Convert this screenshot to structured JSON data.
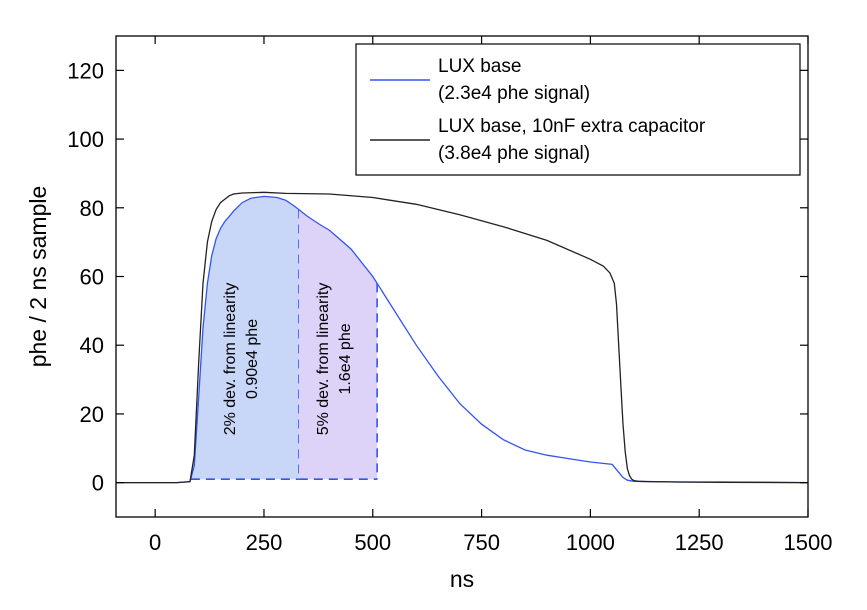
{
  "chart_data": {
    "type": "line",
    "title": "",
    "xlabel": "ns",
    "ylabel": "phe / 2 ns sample",
    "xlim": [
      -90,
      1500
    ],
    "ylim": [
      -10,
      130
    ],
    "xticks": [
      0,
      250,
      500,
      750,
      1000,
      1250,
      1500
    ],
    "yticks": [
      0,
      20,
      40,
      60,
      80,
      100,
      120
    ],
    "grid": false,
    "legend_position": "top-right",
    "legend": [
      {
        "series": "blue",
        "line1": "LUX base",
        "line2": "(2.3e4 phe signal)"
      },
      {
        "series": "black",
        "line1": "LUX base, 10nF extra capacitor",
        "line2": "(3.8e4 phe signal)"
      }
    ],
    "series": [
      {
        "key": "blue",
        "color": "#3355ee",
        "x": [
          -90,
          50,
          80,
          90,
          100,
          110,
          120,
          130,
          140,
          150,
          160,
          170,
          180,
          200,
          220,
          250,
          280,
          300,
          320,
          350,
          380,
          400,
          450,
          500,
          550,
          600,
          650,
          700,
          750,
          800,
          850,
          900,
          950,
          1000,
          1050,
          1065,
          1075,
          1085,
          1100,
          1150,
          1200,
          1300,
          1400,
          1500
        ],
        "y": [
          0,
          0,
          0.3,
          5,
          25,
          45,
          58,
          66,
          71,
          74,
          76,
          77.5,
          79,
          81.5,
          82.8,
          83.3,
          83,
          82.2,
          80.5,
          77.5,
          75,
          73.5,
          68,
          60,
          50,
          40,
          31,
          23,
          17,
          12.5,
          9.5,
          8,
          7,
          6,
          5.3,
          3,
          1.5,
          0.7,
          0.4,
          0.3,
          0.2,
          0.2,
          0.1,
          0
        ]
      },
      {
        "key": "black",
        "color": "#222222",
        "x": [
          -90,
          50,
          80,
          90,
          100,
          110,
          120,
          130,
          140,
          150,
          160,
          170,
          180,
          200,
          250,
          300,
          400,
          500,
          600,
          700,
          800,
          900,
          1000,
          1030,
          1045,
          1055,
          1060,
          1065,
          1070,
          1075,
          1080,
          1085,
          1090,
          1095,
          1100,
          1110,
          1130,
          1200,
          1300,
          1500
        ],
        "y": [
          0,
          0,
          0.3,
          8,
          35,
          58,
          70,
          76,
          79.5,
          81.5,
          82.5,
          83.5,
          84,
          84.3,
          84.5,
          84.2,
          84,
          83,
          81,
          78,
          74.5,
          70.5,
          65,
          63,
          61,
          58,
          52,
          40,
          28,
          17,
          9,
          4,
          2,
          1,
          0.6,
          0.4,
          0.3,
          0.2,
          0.1,
          0
        ]
      }
    ],
    "regions": [
      {
        "key": "region2",
        "x_start": 82,
        "x_end": 330,
        "fill": "#c8d7f7",
        "label_line1": "2% dev. from linearity",
        "label_line2": "0.90e4 phe"
      },
      {
        "key": "region5",
        "x_start": 330,
        "x_end": 510,
        "fill": "#ddd2f7",
        "label_line1": "5% dev. from linearity",
        "label_line2": "1.6e4 phe"
      }
    ],
    "region_baseline_y": 1
  }
}
